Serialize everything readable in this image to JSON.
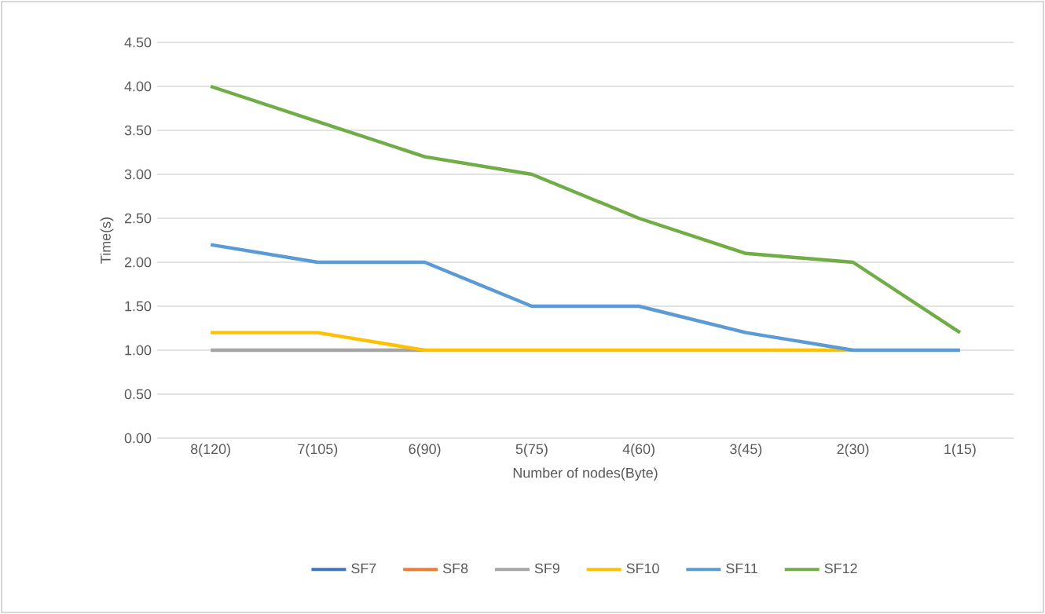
{
  "chart_data": {
    "type": "line",
    "xlabel": "Number  of nodes(Byte)",
    "ylabel": "Time(s)",
    "categories": [
      "8(120)",
      "7(105)",
      "6(90)",
      "5(75)",
      "4(60)",
      "3(45)",
      "2(30)",
      "1(15)"
    ],
    "series": [
      {
        "name": "SF7",
        "color": "#4472c4",
        "values": [
          null,
          null,
          null,
          null,
          null,
          null,
          null,
          null
        ]
      },
      {
        "name": "SF8",
        "color": "#ed7d31",
        "values": [
          null,
          null,
          null,
          null,
          null,
          null,
          null,
          null
        ]
      },
      {
        "name": "SF9",
        "color": "#a5a5a5",
        "values": [
          1.0,
          1.0,
          1.0,
          null,
          null,
          null,
          null,
          null
        ]
      },
      {
        "name": "SF10",
        "color": "#ffc000",
        "values": [
          1.2,
          1.2,
          1.0,
          1.0,
          1.0,
          1.0,
          1.0,
          null
        ]
      },
      {
        "name": "SF11",
        "color": "#5b9bd5",
        "values": [
          2.2,
          2.0,
          2.0,
          1.5,
          1.5,
          1.2,
          1.0,
          1.0
        ]
      },
      {
        "name": "SF12",
        "color": "#70ad47",
        "values": [
          4.0,
          3.6,
          3.2,
          3.0,
          2.5,
          2.1,
          2.0,
          1.2
        ]
      }
    ],
    "ylim": [
      0,
      4.5
    ],
    "yticks": [
      {
        "value": 0,
        "label": "0.00"
      },
      {
        "value": 0.5,
        "label": "0.50"
      },
      {
        "value": 1,
        "label": "1.00"
      },
      {
        "value": 1.5,
        "label": "1.50"
      },
      {
        "value": 2,
        "label": "2.00"
      },
      {
        "value": 2.5,
        "label": "2.50"
      },
      {
        "value": 3,
        "label": "3.00"
      },
      {
        "value": 3.5,
        "label": "3.50"
      },
      {
        "value": 4,
        "label": "4.00"
      },
      {
        "value": 4.5,
        "label": "4.50"
      }
    ],
    "grid": "y",
    "legend": "bottom",
    "marker": "none",
    "line_style": "solid"
  }
}
